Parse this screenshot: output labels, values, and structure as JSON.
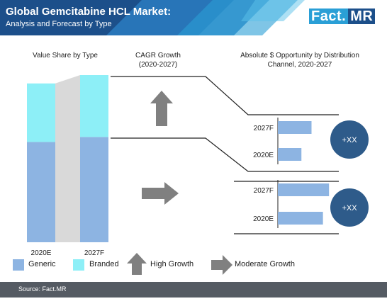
{
  "header": {
    "title": "Global Gemcitabine HCL Market:",
    "subtitle": "Analysis and Forecast by Type",
    "logo_part1": "Fact.",
    "logo_part2": "MR"
  },
  "columns": {
    "value_share": "Value Share by Type",
    "cagr": "CAGR Growth (2020-2027)",
    "opportunity": "Absolute $ Opportunity by Distribution Channel, 2020-2027"
  },
  "legend": {
    "generic": "Generic",
    "branded": "Branded",
    "high_growth": "High Growth",
    "moderate_growth": "Moderate Growth"
  },
  "footer": {
    "source": "Source: Fact.MR"
  },
  "colors": {
    "generic": "#8db4e2",
    "branded": "#8deff7",
    "arrow": "#808080",
    "bubble": "#2e5b8a",
    "header_dark": "#1c4f8a",
    "header_light": "#2a9fd6",
    "connector": "#d9d9d9"
  },
  "chart_data": [
    {
      "type": "bar",
      "stacked": true,
      "title": "Value Share by Type",
      "categories": [
        "2020E",
        "2027F"
      ],
      "series": [
        {
          "name": "Generic",
          "values": [
            0.6,
            0.63
          ]
        },
        {
          "name": "Branded",
          "values": [
            0.35,
            0.37
          ]
        }
      ],
      "scale": "relative share (unlabeled)"
    },
    {
      "type": "bar",
      "orientation": "horizontal",
      "title": "Absolute $ Opportunity by Distribution Channel, 2020-2027",
      "groups": [
        {
          "indicator": "high-growth-arrow",
          "bubble_label": "+XX",
          "bars": [
            {
              "label": "2027F",
              "value": 0.5
            },
            {
              "label": "2020E",
              "value": 0.35
            }
          ]
        },
        {
          "indicator": "moderate-growth-arrow",
          "bubble_label": "+XX",
          "bars": [
            {
              "label": "2027F",
              "value": 0.76
            },
            {
              "label": "2020E",
              "value": 0.67
            }
          ]
        }
      ],
      "scale": "relative (unlabeled)"
    }
  ]
}
